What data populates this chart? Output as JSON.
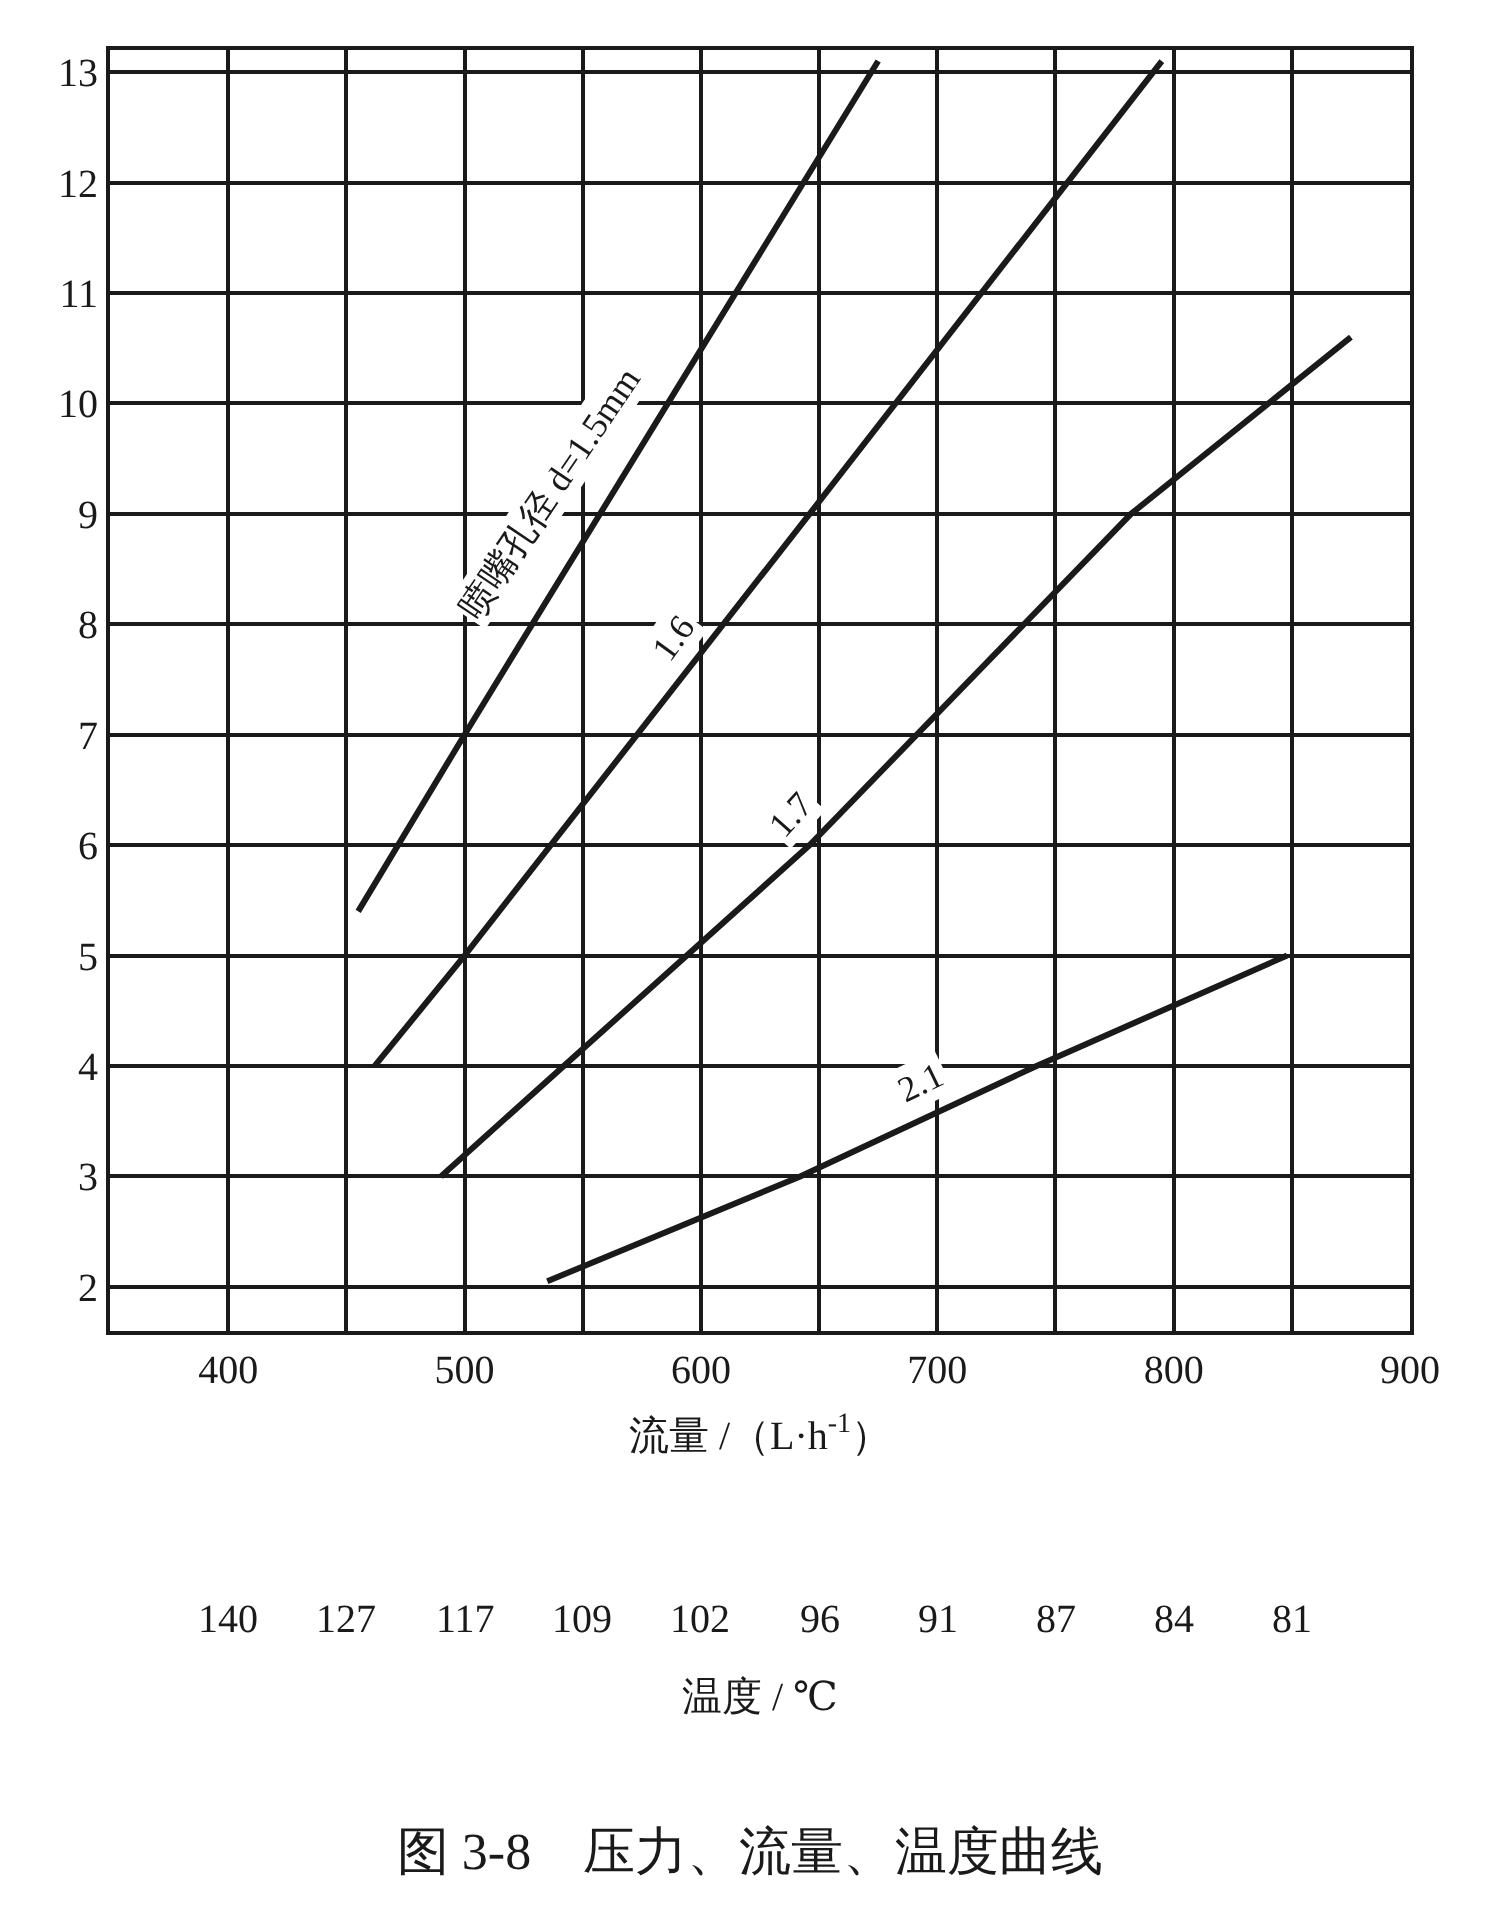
{
  "chart_data": {
    "type": "line",
    "title": "图 3-8　压力、流量、温度曲线",
    "xlabel": "流量 /（L·h$^{-1}$）",
    "xlim": [
      350,
      900
    ],
    "xticks": [
      {
        "value": 350,
        "label": null
      },
      400,
      {
        "value": 450,
        "label": null
      },
      500,
      {
        "value": 550,
        "label": null
      },
      600,
      {
        "value": 650,
        "label": null
      },
      700,
      {
        "value": 750,
        "label": null
      },
      800,
      {
        "value": 850,
        "label": null
      },
      900
    ],
    "ylim": [
      1.6,
      13.2
    ],
    "yticks": [
      2,
      3,
      4,
      5,
      6,
      7,
      8,
      9,
      10,
      11,
      12,
      13
    ],
    "grid": true,
    "marker": "none",
    "line_style": "solid",
    "series": [
      {
        "color": "#1a1a1a",
        "x": [
          455,
          500,
          586,
          675
        ],
        "values": [
          5.4,
          7,
          10,
          13.1
        ]
      },
      {
        "color": "#1a1a1a",
        "x": [
          462,
          500,
          646,
          795
        ],
        "values": [
          4,
          5,
          9,
          13.1
        ]
      },
      {
        "color": "#1a1a1a",
        "x": [
          490,
          646,
          782,
          875
        ],
        "values": [
          3,
          6,
          9,
          10.6
        ]
      },
      {
        "color": "#1a1a1a",
        "x": [
          535,
          642,
          742,
          848
        ],
        "values": [
          2.05,
          3,
          4,
          5
        ]
      }
    ],
    "annotations": [
      {
        "text": "喷嘴孔径 d=1.5mm",
        "x": 555,
        "y": 8.9
      },
      {
        "text": "1.6",
        "x": 600,
        "y": 7.7
      },
      {
        "text": "1.7",
        "x": 650,
        "y": 6.1
      },
      {
        "text": "2.1",
        "x": 700,
        "y": 3.6
      },
      "140 127 117 109 102 96 91 87 84 81",
      "温度 / ℃"
    ]
  }
}
